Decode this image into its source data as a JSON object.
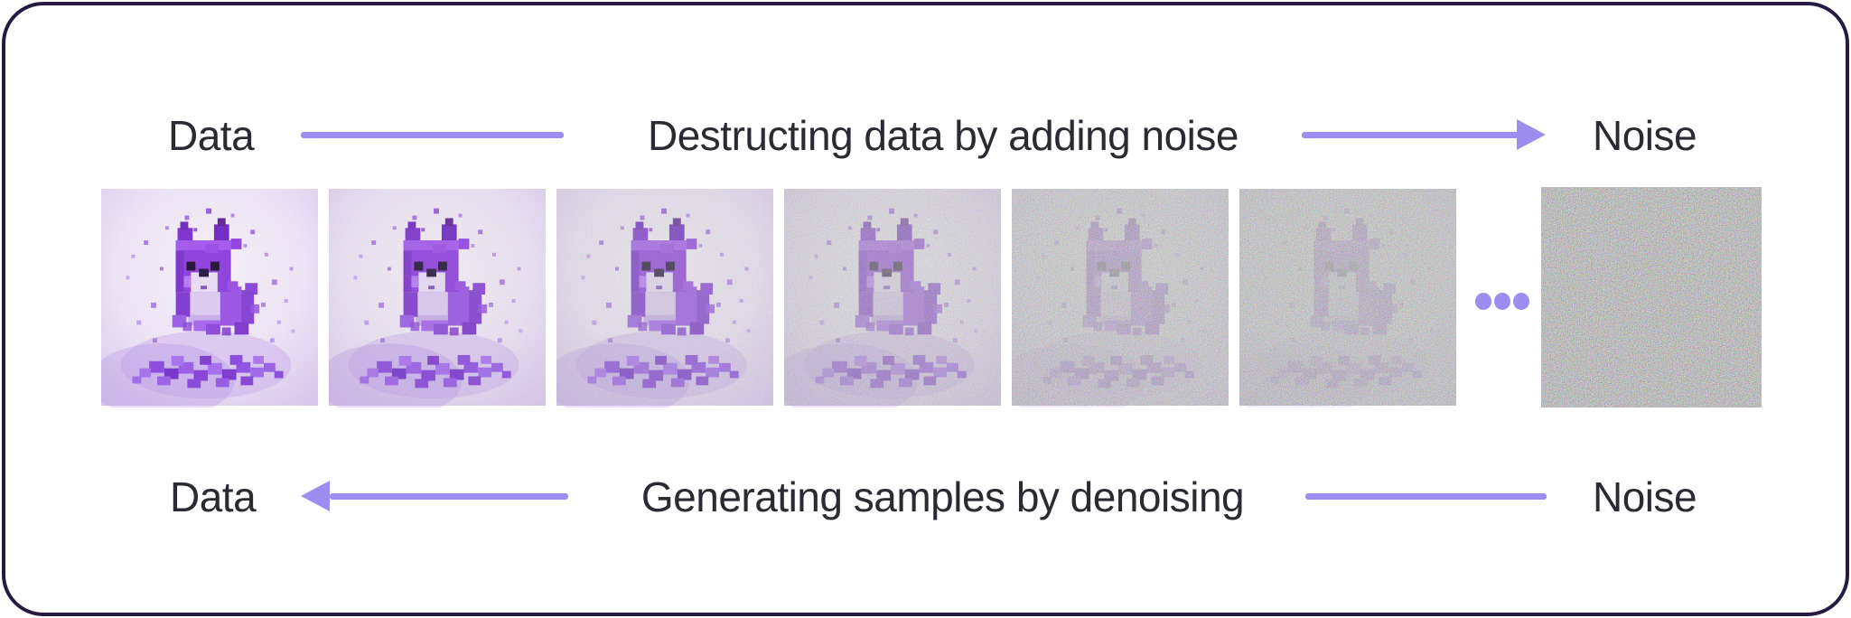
{
  "colors": {
    "accent": "#9e8df1",
    "ink": "#2b2931",
    "card_border": "#261943",
    "card_background": "#ffffff",
    "noise_tint": "#b4beb2"
  },
  "top_row": {
    "left_label": "Data",
    "title": "Destructing data by adding noise",
    "right_label": "Noise",
    "arrow_direction": "right"
  },
  "bottom_row": {
    "left_label": "Data",
    "title": "Generating samples by denoising",
    "right_label": "Noise",
    "arrow_direction": "left"
  },
  "sequence": {
    "subject": "voxel puppy hovering over disintegrating cubes, progressively destroyed by gaussian noise",
    "ellipsis_dots": 3,
    "frames": [
      {
        "tint": 0.0,
        "dog": 1.0,
        "noise": 0.05
      },
      {
        "tint": 0.04,
        "dog": 1.0,
        "noise": 0.11
      },
      {
        "tint": 0.12,
        "dog": 0.95,
        "noise": 0.2
      },
      {
        "tint": 0.24,
        "dog": 0.85,
        "noise": 0.34
      },
      {
        "tint": 0.42,
        "dog": 0.62,
        "noise": 0.52
      },
      {
        "tint": 0.5,
        "dog": 0.52,
        "noise": 0.6
      },
      {
        "tint": 0.64,
        "dog": 0.16,
        "noise": 0.88
      }
    ]
  }
}
